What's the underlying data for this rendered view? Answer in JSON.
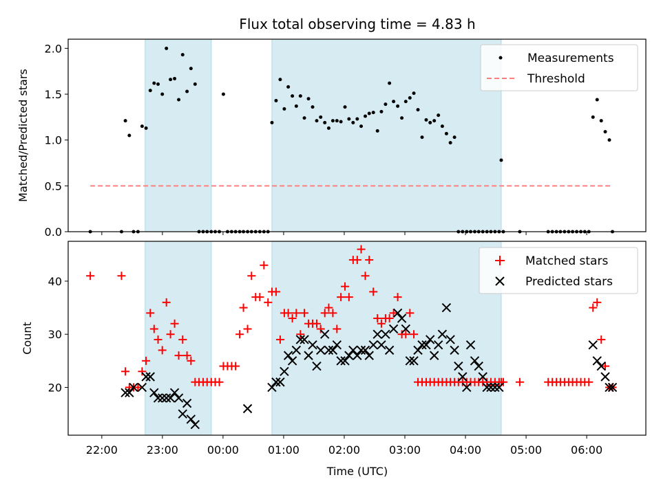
{
  "chart_data": [
    {
      "type": "scatter",
      "title": "Flux total observing time = 4.83 h",
      "xlabel": "",
      "ylabel": "Matched/Predicted stars",
      "xlim": [
        -2.555,
        6.976
      ],
      "ylim": [
        0,
        2.1
      ],
      "yticks": [
        0.0,
        0.5,
        1.0,
        1.5,
        2.0
      ],
      "ytick_labels": [
        "0.0",
        "0.5",
        "1.0",
        "1.5",
        "2.0"
      ],
      "shaded_intervals": [
        [
          -1.285,
          -0.194
        ],
        [
          0.807,
          4.59
        ]
      ],
      "legend": {
        "position": "top-right",
        "entries": [
          "Measurements",
          "Threshold"
        ]
      },
      "series": [
        {
          "name": "Measurements",
          "marker": "dot",
          "color": "#000000",
          "x": [
            -2.19,
            -1.675,
            -1.611,
            -1.546,
            -1.476,
            -1.403,
            -1.335,
            -1.27,
            -1.2,
            -1.137,
            -1.072,
            -1.002,
            -0.934,
            -0.867,
            -0.799,
            -0.731,
            -0.666,
            -0.594,
            -0.529,
            -0.461,
            -0.396,
            -0.328,
            -0.263,
            -0.194,
            -0.129,
            -0.061,
            0.006,
            0.074,
            0.142,
            0.207,
            0.275,
            0.337,
            0.405,
            0.47,
            0.538,
            0.607,
            0.675,
            0.742,
            0.807,
            0.875,
            0.943,
            1.011,
            1.076,
            1.144,
            1.209,
            1.277,
            1.342,
            1.41,
            1.478,
            1.546,
            1.611,
            1.679,
            1.744,
            1.812,
            1.879,
            1.945,
            2.012,
            2.078,
            2.146,
            2.214,
            2.279,
            2.347,
            2.412,
            2.48,
            2.548,
            2.613,
            2.681,
            2.746,
            2.814,
            2.882,
            2.95,
            3.015,
            3.083,
            3.148,
            3.216,
            3.284,
            3.352,
            3.417,
            3.485,
            3.553,
            3.618,
            3.686,
            3.751,
            3.819,
            3.884,
            3.952,
            4.02,
            4.085,
            4.153,
            4.218,
            4.286,
            4.354,
            4.419,
            4.487,
            4.555,
            4.59,
            4.624,
            4.896,
            5.365,
            5.433,
            5.501,
            5.566,
            5.634,
            5.702,
            5.767,
            5.835,
            5.903,
            5.968,
            6.036,
            6.104,
            6.172,
            6.24,
            6.306,
            6.374,
            6.425
          ],
          "y": [
            0.0,
            0.0,
            1.21,
            1.05,
            0.0,
            0.0,
            1.15,
            1.13,
            1.54,
            1.62,
            1.61,
            1.5,
            2.0,
            1.66,
            1.67,
            1.44,
            1.93,
            1.53,
            1.78,
            1.61,
            0.0,
            0.0,
            0.0,
            0.0,
            0.0,
            0.0,
            1.5,
            0.0,
            0.0,
            0.0,
            0.0,
            0.0,
            0.0,
            0.0,
            0.0,
            0.0,
            0.0,
            0.0,
            1.19,
            1.43,
            1.66,
            1.34,
            1.58,
            1.48,
            1.37,
            1.48,
            1.24,
            1.45,
            1.36,
            1.21,
            1.25,
            1.19,
            1.13,
            1.21,
            1.21,
            1.2,
            1.36,
            1.23,
            1.19,
            1.23,
            1.15,
            1.26,
            1.29,
            1.3,
            1.1,
            1.31,
            1.39,
            1.62,
            1.42,
            1.37,
            1.24,
            1.42,
            1.46,
            1.51,
            1.33,
            1.03,
            1.22,
            1.19,
            1.21,
            1.27,
            1.15,
            1.07,
            0.97,
            1.03,
            0.0,
            0.0,
            0.0,
            0.0,
            0.0,
            0.0,
            0.0,
            0.0,
            0.0,
            0.0,
            0.0,
            0.78,
            0.0,
            0.0,
            0.0,
            0.0,
            0.0,
            0.0,
            0.0,
            0.0,
            0.0,
            0.0,
            0.0,
            0.0,
            0.0,
            1.25,
            1.44,
            1.21,
            1.09,
            1.0,
            0.0
          ]
        },
        {
          "name": "Threshold",
          "line": "dashed",
          "color": "#ff7f7f",
          "x": [
            -2.19,
            6.425
          ],
          "y": [
            0.5,
            0.5
          ]
        }
      ]
    },
    {
      "type": "scatter",
      "xlabel": "Time (UTC)",
      "ylabel": "Count",
      "xlim": [
        -2.555,
        6.976
      ],
      "ylim": [
        11,
        47.5
      ],
      "yticks": [
        20,
        30,
        40
      ],
      "ytick_labels": [
        "20",
        "30",
        "40"
      ],
      "xticks": [
        -2,
        -1,
        0,
        1,
        2,
        3,
        4,
        5,
        6
      ],
      "xtick_labels": [
        "22:00",
        "23:00",
        "00:00",
        "01:00",
        "02:00",
        "03:00",
        "04:00",
        "05:00",
        "06:00"
      ],
      "shaded_intervals": [
        [
          -1.285,
          -0.194
        ],
        [
          0.807,
          4.59
        ]
      ],
      "legend": {
        "position": "top-right",
        "entries": [
          "Matched stars",
          "Predicted stars"
        ]
      },
      "series": [
        {
          "name": "Matched stars",
          "marker": "plus",
          "color": "#ff0000",
          "x": [
            -2.19,
            -1.675,
            -1.611,
            -1.546,
            -1.476,
            -1.403,
            -1.335,
            -1.27,
            -1.2,
            -1.137,
            -1.072,
            -1.002,
            -0.934,
            -0.867,
            -0.799,
            -0.731,
            -0.666,
            -0.594,
            -0.529,
            -0.461,
            -0.396,
            -0.328,
            -0.263,
            -0.194,
            -0.129,
            -0.061,
            0.006,
            0.074,
            0.142,
            0.207,
            0.275,
            0.337,
            0.405,
            0.47,
            0.538,
            0.607,
            0.675,
            0.742,
            0.807,
            0.875,
            0.943,
            1.011,
            1.076,
            1.144,
            1.209,
            1.277,
            1.342,
            1.41,
            1.478,
            1.546,
            1.611,
            1.679,
            1.744,
            1.812,
            1.879,
            1.945,
            2.012,
            2.078,
            2.146,
            2.214,
            2.279,
            2.347,
            2.412,
            2.48,
            2.548,
            2.613,
            2.681,
            2.746,
            2.814,
            2.882,
            2.95,
            3.015,
            3.083,
            3.148,
            3.216,
            3.284,
            3.352,
            3.417,
            3.485,
            3.553,
            3.618,
            3.686,
            3.751,
            3.819,
            3.884,
            3.952,
            4.02,
            4.085,
            4.153,
            4.218,
            4.286,
            4.354,
            4.419,
            4.487,
            4.555,
            4.59,
            4.624,
            4.896,
            5.365,
            5.433,
            5.501,
            5.566,
            5.634,
            5.702,
            5.767,
            5.835,
            5.903,
            5.968,
            6.036,
            6.104,
            6.172,
            6.24,
            6.306,
            6.374,
            6.425
          ],
          "y": [
            41,
            41,
            23,
            20,
            20,
            20,
            23,
            25,
            34,
            31,
            29,
            27,
            36,
            30,
            32,
            26,
            29,
            26,
            25,
            21,
            21,
            21,
            21,
            21,
            21,
            21,
            24,
            24,
            24,
            24,
            30,
            35,
            31,
            41,
            37,
            37,
            43,
            36,
            38,
            38,
            29,
            34,
            34,
            33,
            34,
            30,
            34,
            32,
            32,
            32,
            31,
            34,
            35,
            34,
            31,
            37,
            39,
            37,
            44,
            44,
            46,
            41,
            44,
            38,
            33,
            32,
            33,
            33,
            34,
            37,
            30,
            30,
            34,
            30,
            21,
            21,
            21,
            21,
            21,
            21,
            21,
            21,
            21,
            21,
            21,
            21,
            21,
            21,
            21,
            21,
            21,
            21,
            21,
            21,
            21,
            21,
            21,
            21,
            21,
            21,
            21,
            21,
            21,
            21,
            21,
            21,
            21,
            21,
            21,
            35,
            36,
            29,
            24,
            20,
            20
          ]
        },
        {
          "name": "Predicted stars",
          "marker": "x",
          "color": "#000000",
          "x": [
            -1.611,
            -1.546,
            -1.476,
            -1.335,
            -1.27,
            -1.2,
            -1.137,
            -1.072,
            -1.002,
            -0.934,
            -0.867,
            -0.799,
            -0.731,
            -0.666,
            -0.594,
            -0.529,
            -0.461,
            0.405,
            0.807,
            0.875,
            0.943,
            1.011,
            1.076,
            1.144,
            1.209,
            1.277,
            1.342,
            1.41,
            1.478,
            1.546,
            1.611,
            1.679,
            1.744,
            1.812,
            1.879,
            1.945,
            2.012,
            2.078,
            2.146,
            2.214,
            2.279,
            2.347,
            2.412,
            2.48,
            2.548,
            2.613,
            2.681,
            2.746,
            2.814,
            2.882,
            2.95,
            3.015,
            3.083,
            3.148,
            3.216,
            3.284,
            3.352,
            3.417,
            3.485,
            3.553,
            3.618,
            3.686,
            3.751,
            3.819,
            3.884,
            3.952,
            4.02,
            4.085,
            4.153,
            4.218,
            4.286,
            4.354,
            4.419,
            4.487,
            4.555,
            6.104,
            6.172,
            6.24,
            6.306,
            6.374,
            6.425
          ],
          "y": [
            19,
            19,
            20,
            20,
            22,
            22,
            19,
            18,
            18,
            18,
            18,
            19,
            18,
            15,
            17,
            14,
            13,
            16,
            20,
            21,
            21,
            23,
            26,
            25,
            27,
            29,
            29,
            26,
            28,
            24,
            27,
            30,
            27,
            27,
            28,
            25,
            25,
            26,
            27,
            26,
            27,
            27,
            26,
            28,
            30,
            28,
            30,
            27,
            31,
            34,
            33,
            31,
            25,
            25,
            27,
            28,
            28,
            29,
            26,
            28,
            30,
            35,
            29,
            27,
            24,
            22,
            20,
            28,
            25,
            24,
            22,
            20,
            20,
            20,
            20,
            28,
            25,
            24,
            22,
            20,
            20
          ]
        }
      ]
    }
  ]
}
